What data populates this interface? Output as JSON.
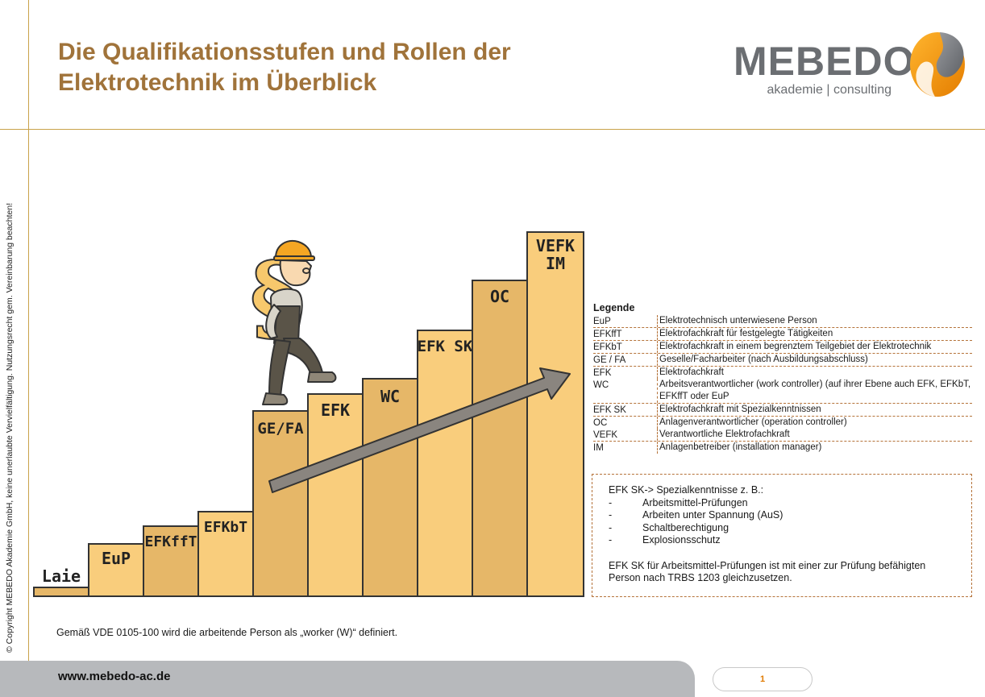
{
  "title": {
    "line1": "Die Qualifikationsstufen und Rollen der",
    "line2": "Elektrotechnik im Überblick"
  },
  "logo": {
    "name": "MEBEDO",
    "tagline": "akademie | consulting"
  },
  "copyright": "© Copyright MEBEDO Akademie GmbH, keine unerlaubte Vervielfältigung. Nutzungsrecht gem. Vereinbarung beachten!",
  "steps": [
    {
      "label": "Laie"
    },
    {
      "label": "EuP"
    },
    {
      "label": "EFKffT"
    },
    {
      "label": "EFKbT"
    },
    {
      "label": "GE/FA"
    },
    {
      "label": "EFK"
    },
    {
      "label": "WC"
    },
    {
      "label": "EFK SK"
    },
    {
      "label": "OC"
    },
    {
      "label": "VEFK"
    },
    {
      "label": "IM"
    }
  ],
  "legend": {
    "title": "Legende",
    "rows": [
      {
        "abbr": "EuP",
        "def": "Elektrotechnisch unterwiesene Person"
      },
      {
        "abbr": "EFKffT",
        "def": "Elektrofachkraft für festgelegte Tätigkeiten"
      },
      {
        "abbr": "EFKbT",
        "def": "Elektrofachkraft in einem begrenztem Teilgebiet der Elektrotechnik"
      },
      {
        "abbr": "GE / FA",
        "def": "Geselle/Facharbeiter (nach Ausbildungsabschluss)"
      },
      {
        "abbr": "EFK",
        "def": "Elektrofachkraft"
      },
      {
        "abbr": "WC",
        "def": "Arbeitsverantwortlicher (work controller) (auf ihrer Ebene auch EFK, EFKbT, EFKffT oder EuP"
      },
      {
        "abbr": "EFK SK",
        "def": "Elektrofachkraft mit Spezialkenntnissen"
      },
      {
        "abbr": "OC",
        "def": "Anlagenverantwortlicher (operation controller)"
      },
      {
        "abbr": "VEFK",
        "def": "Verantwortliche Elektrofachkraft"
      },
      {
        "abbr": "IM",
        "def": "Anlagenbetreiber (installation manager)"
      }
    ]
  },
  "note": {
    "heading": "EFK SK-> Spezialkenntnisse z. B.:",
    "dash": "-",
    "items": [
      "Arbeitsmittel-Prüfungen",
      "Arbeiten unter Spannung (AuS)",
      "Schaltberechtigung",
      "Explosionsschutz"
    ],
    "footer": "EFK SK für Arbeitsmittel-Prüfungen ist mit einer zur Prüfung befähigten Person nach TRBS 1203 gleichzusetzen."
  },
  "bottom_note": "Gemäß VDE 0105-100 wird die arbeitende Person als „worker (W)“ definiert.",
  "footer": {
    "url": "www.mebedo-ac.de",
    "page": "1"
  },
  "colors": {
    "title": "#a0733a",
    "step_light": "#f9cd7c",
    "step_dark": "#e6b768",
    "arrow": "#8a857f",
    "footer": "#b7b9bc",
    "page_number": "#e07a00"
  }
}
